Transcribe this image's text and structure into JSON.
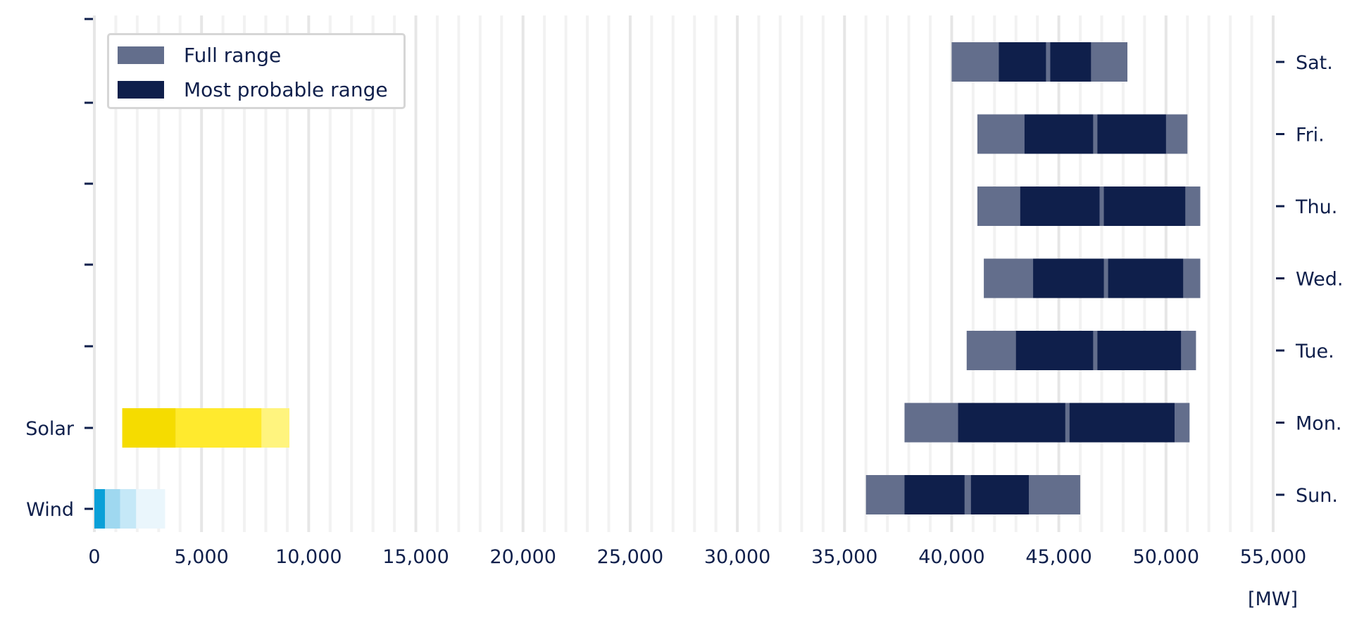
{
  "chart_data": {
    "type": "bar",
    "unit_label": "[MW]",
    "xlim": [
      0,
      55000
    ],
    "x_ticks": [
      0,
      5000,
      10000,
      15000,
      20000,
      25000,
      30000,
      35000,
      40000,
      45000,
      50000,
      55000
    ],
    "x_tick_labels": [
      "0",
      "5,000",
      "10,000",
      "15,000",
      "20,000",
      "25,000",
      "30,000",
      "35,000",
      "40,000",
      "45,000",
      "50,000",
      "55,000"
    ],
    "grid": true,
    "legend": {
      "placement": "top-left",
      "entries": [
        {
          "label": "Full range",
          "color": "#636e8c"
        },
        {
          "label": "Most probable range",
          "color": "#0f1f4b"
        }
      ]
    },
    "left_categories": [
      "Wind",
      "Solar"
    ],
    "right_categories": [
      "Sun.",
      "Mon.",
      "Tue.",
      "Wed.",
      "Thu.",
      "Fri.",
      "Sat."
    ],
    "colors": {
      "full_range": "#636e8c",
      "most_probable": "#0f1f4b",
      "text": "#0f1f4b",
      "grid_major": "#e6e6e6",
      "grid_minor": "#f2f2f2"
    },
    "generation": [
      {
        "name": "Wind",
        "segments": [
          {
            "from": 0,
            "to": 500,
            "color": "#0aa0d8"
          },
          {
            "from": 500,
            "to": 1200,
            "color": "#9fd8f0"
          },
          {
            "from": 1200,
            "to": 1950,
            "color": "#c5e8f7"
          },
          {
            "from": 1950,
            "to": 3300,
            "color": "#eaf6fc"
          }
        ]
      },
      {
        "name": "Solar",
        "segments": [
          {
            "from": 1300,
            "to": 3800,
            "color": "#f5dc00"
          },
          {
            "from": 3800,
            "to": 7800,
            "color": "#ffea2e"
          },
          {
            "from": 7800,
            "to": 9100,
            "color": "#fff47e"
          }
        ]
      }
    ],
    "load": [
      {
        "day": "Sun.",
        "full": [
          36000,
          46000
        ],
        "probable": [
          [
            37800,
            40600
          ],
          [
            40900,
            43600
          ]
        ]
      },
      {
        "day": "Mon.",
        "full": [
          37800,
          51100
        ],
        "probable": [
          [
            40300,
            45300
          ],
          [
            45500,
            50400
          ]
        ]
      },
      {
        "day": "Tue.",
        "full": [
          40700,
          51400
        ],
        "probable": [
          [
            43000,
            46600
          ],
          [
            46800,
            50700
          ]
        ]
      },
      {
        "day": "Wed.",
        "full": [
          41500,
          51600
        ],
        "probable": [
          [
            43800,
            47100
          ],
          [
            47300,
            50800
          ]
        ]
      },
      {
        "day": "Thu.",
        "full": [
          41200,
          51600
        ],
        "probable": [
          [
            43200,
            46900
          ],
          [
            47100,
            50900
          ]
        ]
      },
      {
        "day": "Fri.",
        "full": [
          41200,
          51000
        ],
        "probable": [
          [
            43400,
            46600
          ],
          [
            46800,
            50000
          ]
        ]
      },
      {
        "day": "Sat.",
        "full": [
          40000,
          48200
        ],
        "probable": [
          [
            42200,
            44400
          ],
          [
            44600,
            46500
          ]
        ]
      }
    ]
  }
}
